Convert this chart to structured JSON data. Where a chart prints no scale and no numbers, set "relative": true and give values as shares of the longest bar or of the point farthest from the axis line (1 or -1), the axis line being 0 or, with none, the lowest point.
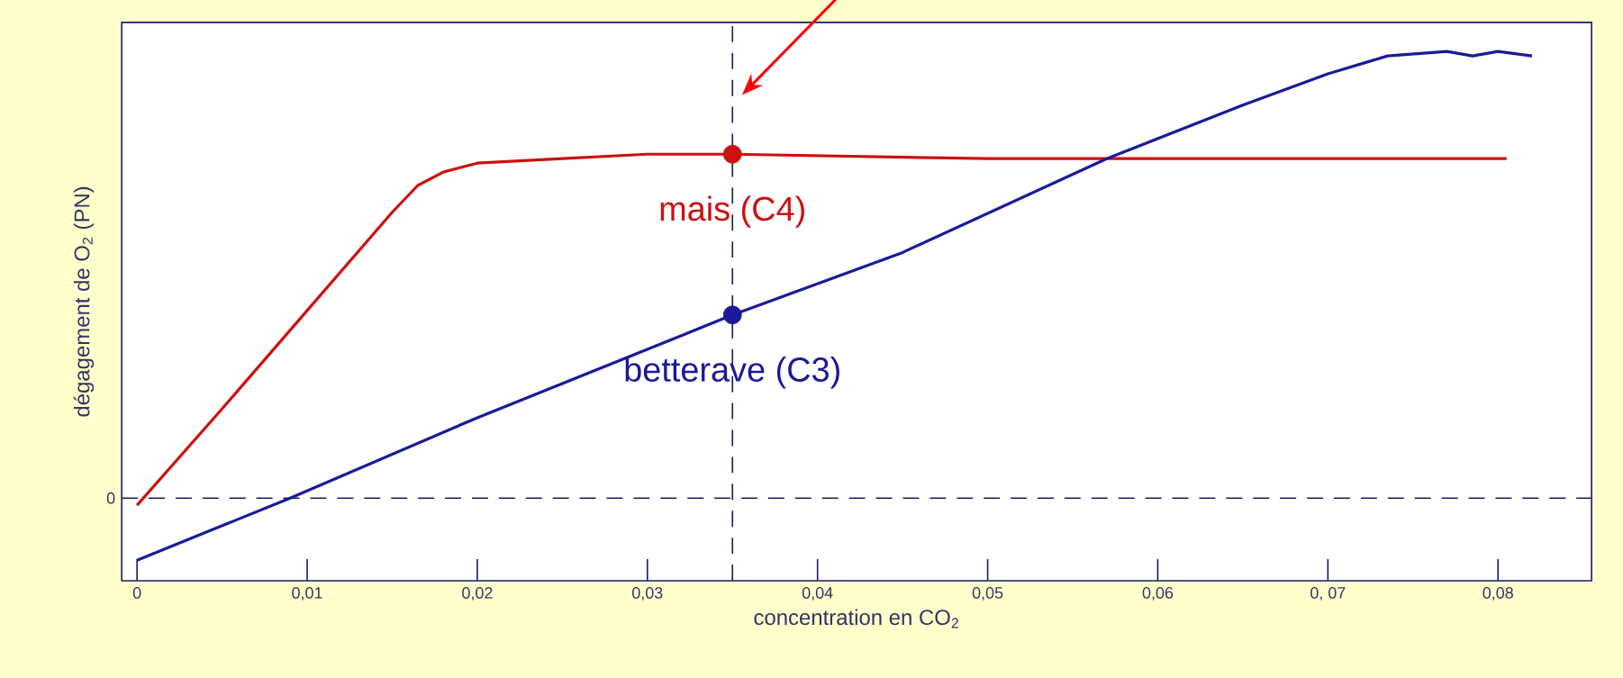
{
  "chart_data": {
    "type": "line",
    "relative": true,
    "xlabel": "concentration en CO$_{2}$",
    "ylabel": "dégagement de O$_{2}$ (PN)",
    "xlim": [
      -0.0009,
      0.0855
    ],
    "xticks": [
      {
        "value": 0,
        "label": "0"
      },
      {
        "value": 0.01,
        "label": "0,01"
      },
      {
        "value": 0.02,
        "label": "0,02"
      },
      {
        "value": 0.03,
        "label": "0,03"
      },
      {
        "value": 0.04,
        "label": "0,04"
      },
      {
        "value": 0.05,
        "label": "0,05"
      },
      {
        "value": 0.06,
        "label": "0,06"
      },
      {
        "value": 0.07,
        "label": "0, 07"
      },
      {
        "value": 0.08,
        "label": "0,08"
      }
    ],
    "series": [
      {
        "name": "mais (C4)",
        "color": "#cc1111",
        "x": [
          0,
          0.005,
          0.01,
          0.015,
          0.0165,
          0.018,
          0.02,
          0.025,
          0.03,
          0.035,
          0.05,
          0.0805
        ],
        "values": [
          -0.016,
          0.2,
          0.42,
          0.64,
          0.7,
          0.73,
          0.75,
          0.76,
          0.77,
          0.77,
          0.76,
          0.76
        ]
      },
      {
        "name": "betterave (C3)",
        "color": "#1a1a99",
        "x": [
          0,
          0.009,
          0.02,
          0.035,
          0.045,
          0.057,
          0.065,
          0.07,
          0.0735,
          0.077,
          0.0785,
          0.08,
          0.082
        ],
        "values": [
          -0.139,
          0,
          0.18,
          0.41,
          0.55,
          0.76,
          0.88,
          0.95,
          0.99,
          1.0,
          0.99,
          1.0,
          0.99
        ]
      },
      {
        "type": "scatter",
        "color": "#cc1111",
        "x": [
          0.035
        ],
        "values": [
          0.77
        ]
      },
      {
        "type": "scatter",
        "color": "#1a1a99",
        "x": [
          0.035
        ],
        "values": [
          0.41
        ]
      }
    ],
    "ref_lines": [
      {
        "axis": "y",
        "value": 0,
        "label": "0",
        "color": "#1a1a66",
        "line_style": "dashed"
      },
      {
        "axis": "x",
        "value": 0.035,
        "color": "#1a1a66",
        "line_style": "dashed"
      }
    ],
    "grid": false
  }
}
